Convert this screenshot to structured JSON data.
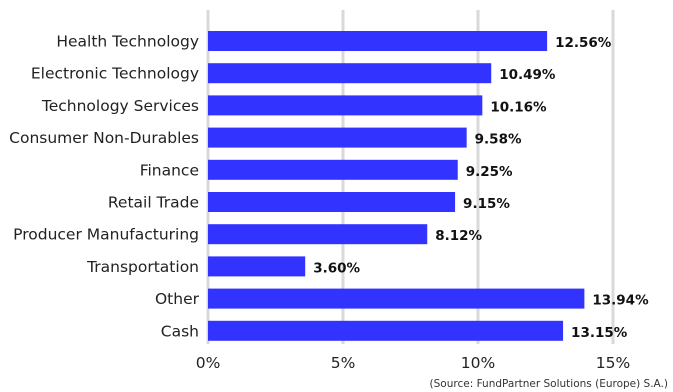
{
  "chart_data": {
    "type": "bar",
    "orientation": "horizontal",
    "title": "",
    "xlabel": "",
    "ylabel": "",
    "categories": [
      "Health Technology",
      "Electronic Technology",
      "Technology Services",
      "Consumer Non-Durables",
      "Finance",
      "Retail Trade",
      "Producer Manufacturing",
      "Transportation",
      "Other",
      "Cash"
    ],
    "values": [
      12.56,
      10.49,
      10.16,
      9.58,
      9.25,
      9.15,
      8.12,
      3.6,
      13.94,
      13.15
    ],
    "value_labels": [
      "12.56%",
      "10.49%",
      "10.16%",
      "9.58%",
      "9.25%",
      "9.15%",
      "8.12%",
      "3.60%",
      "13.94%",
      "13.15%"
    ],
    "xlim": [
      0,
      15
    ],
    "x_ticks": [
      0,
      5,
      10,
      15
    ],
    "x_tick_labels": [
      "0%",
      "5%",
      "10%",
      "15%"
    ],
    "grid": "vertical",
    "legend": "none",
    "bar_color": "#3333ff",
    "grid_color": "#d9d9d9",
    "source": "(Source: FundPartner Solutions (Europe) S.A.)"
  }
}
